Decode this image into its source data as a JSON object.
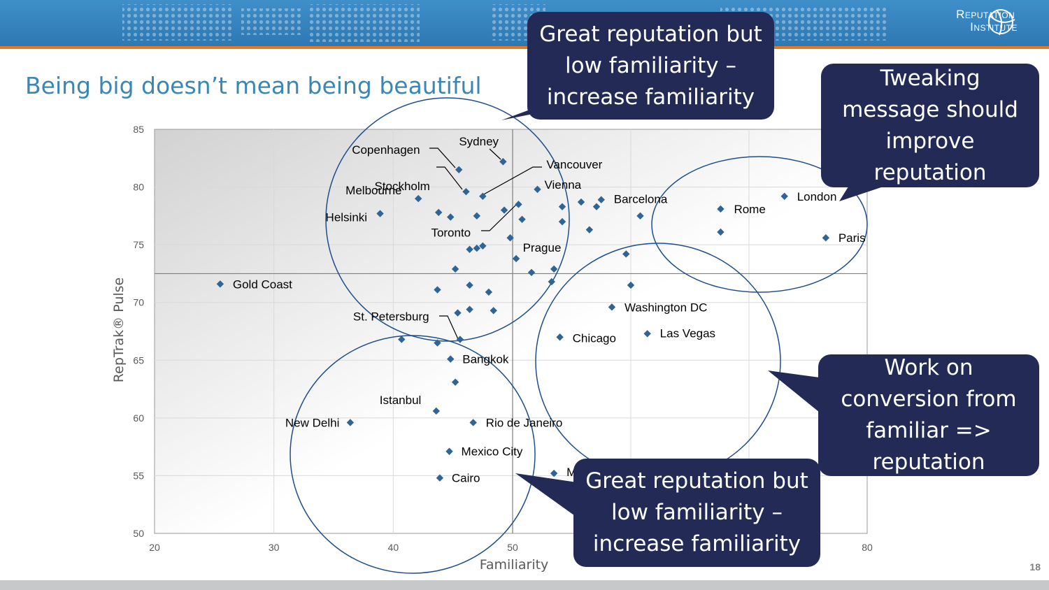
{
  "header": {
    "logo_line1": "Reputation",
    "logo_line2": "Institute"
  },
  "slide": {
    "title": "Being big doesn’t mean being beautiful",
    "page_number": "18"
  },
  "callouts": {
    "top_middle": "Great reputation but low familiarity – increase familiarity",
    "top_right": "Tweaking message should improve reputation",
    "middle_right": "Work on conversion from familiar => reputation",
    "bottom_middle": "Great reputation but low familiarity – increase familiarity"
  },
  "colors": {
    "header": "#2e78b3",
    "accent_stripe": "#e87722",
    "title": "#3a86b5",
    "marker": "#2f6494",
    "circle": "#1f4e8c",
    "callout": "#232a55"
  },
  "chart_data": {
    "type": "scatter",
    "xlabel": "Familiarity",
    "ylabel": "RepTrak® Pulse",
    "xlim": [
      20,
      80
    ],
    "ylim": [
      50,
      85
    ],
    "xticks": [
      20,
      30,
      40,
      50,
      80
    ],
    "yticks": [
      50,
      55,
      60,
      65,
      70,
      75,
      80,
      85
    ],
    "reference_lines": {
      "x": 50,
      "y": 72.5
    },
    "labeled_points": [
      {
        "name": "Sydney",
        "x": 49.2,
        "y": 82.2
      },
      {
        "name": "Copenhagen",
        "x": 45.5,
        "y": 81.5
      },
      {
        "name": "Stockholm",
        "x": 46.1,
        "y": 79.6
      },
      {
        "name": "Vancouver",
        "x": 47.5,
        "y": 79.2
      },
      {
        "name": "Melbourne",
        "x": 42.1,
        "y": 79.0
      },
      {
        "name": "Vienna",
        "x": 52.1,
        "y": 79.8
      },
      {
        "name": "Barcelona",
        "x": 57.5,
        "y": 78.9
      },
      {
        "name": "London",
        "x": 73.0,
        "y": 79.2
      },
      {
        "name": "Rome",
        "x": 67.6,
        "y": 78.1
      },
      {
        "name": "Helsinki",
        "x": 38.9,
        "y": 77.7
      },
      {
        "name": "Toronto",
        "x": 50.5,
        "y": 78.5
      },
      {
        "name": "Prague",
        "x": 49.8,
        "y": 75.6
      },
      {
        "name": "Paris",
        "x": 76.5,
        "y": 75.6
      },
      {
        "name": "Gold Coast",
        "x": 25.5,
        "y": 71.6
      },
      {
        "name": "Washington DC",
        "x": 58.4,
        "y": 69.6
      },
      {
        "name": "St. Petersburg",
        "x": 45.6,
        "y": 66.8
      },
      {
        "name": "Chicago",
        "x": 54.0,
        "y": 67.0
      },
      {
        "name": "Las Vegas",
        "x": 61.4,
        "y": 67.3
      },
      {
        "name": "Bangkok",
        "x": 44.8,
        "y": 65.1
      },
      {
        "name": "Istanbul",
        "x": 43.6,
        "y": 60.6
      },
      {
        "name": "New Delhi",
        "x": 36.4,
        "y": 59.6
      },
      {
        "name": "Rio de Janeiro",
        "x": 46.7,
        "y": 59.6
      },
      {
        "name": "Mexico City",
        "x": 44.7,
        "y": 57.1
      },
      {
        "name": "Cairo",
        "x": 43.9,
        "y": 54.8
      },
      {
        "name": "M",
        "x": 53.5,
        "y": 55.2
      }
    ],
    "unlabeled_points": [
      {
        "x": 43.8,
        "y": 77.8
      },
      {
        "x": 44.8,
        "y": 77.4
      },
      {
        "x": 47.0,
        "y": 77.5
      },
      {
        "name_hint": "",
        "x": 49.3,
        "y": 78.0
      },
      {
        "x": 50.8,
        "y": 77.2
      },
      {
        "x": 54.2,
        "y": 78.3
      },
      {
        "x": 54.2,
        "y": 77.0
      },
      {
        "x": 55.8,
        "y": 78.7
      },
      {
        "x": 57.1,
        "y": 78.3
      },
      {
        "x": 60.8,
        "y": 77.5
      },
      {
        "x": 56.5,
        "y": 76.3
      },
      {
        "x": 67.6,
        "y": 76.1
      },
      {
        "x": 47.5,
        "y": 74.9
      },
      {
        "x": 47.0,
        "y": 74.7
      },
      {
        "x": 46.4,
        "y": 74.6
      },
      {
        "x": 50.3,
        "y": 73.8
      },
      {
        "x": 45.2,
        "y": 72.9
      },
      {
        "x": 51.6,
        "y": 72.6
      },
      {
        "x": 53.5,
        "y": 72.9
      },
      {
        "x": 53.3,
        "y": 71.8
      },
      {
        "x": 46.4,
        "y": 71.5
      },
      {
        "x": 48.0,
        "y": 70.9
      },
      {
        "x": 43.7,
        "y": 71.1
      },
      {
        "x": 59.6,
        "y": 74.2
      },
      {
        "x": 60.0,
        "y": 71.5
      },
      {
        "x": 46.4,
        "y": 69.4
      },
      {
        "x": 48.4,
        "y": 69.3
      },
      {
        "x": 45.4,
        "y": 69.1
      },
      {
        "x": 40.7,
        "y": 66.8
      },
      {
        "x": 43.7,
        "y": 66.5
      },
      {
        "x": 45.2,
        "y": 63.1
      }
    ]
  }
}
